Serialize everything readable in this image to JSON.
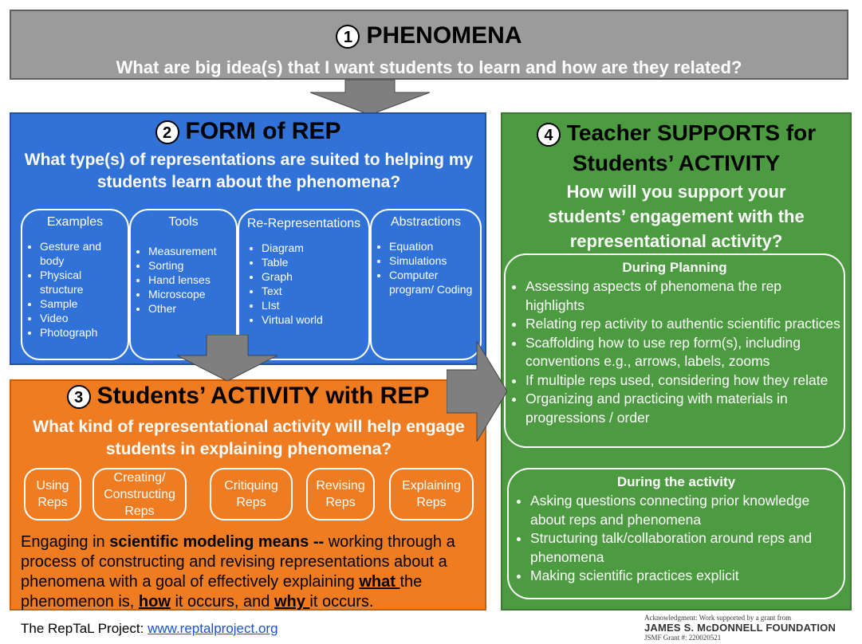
{
  "section1": {
    "number": "1",
    "title": "PHENOMENA",
    "question": "What are big idea(s) that I want students to learn and how are they related?"
  },
  "section2": {
    "number": "2",
    "title": "FORM of REP",
    "question": "What type(s) of representations are suited to helping my students learn about the phenomena?",
    "columns": [
      {
        "header": "Examples",
        "items": [
          "Gesture and body",
          "Physical structure",
          "Sample",
          "Video",
          "Photograph"
        ]
      },
      {
        "header": "Tools",
        "items": [
          "Measurement",
          "Sorting",
          "Hand lenses",
          "Microscope",
          "Other"
        ]
      },
      {
        "header": "Re-Representations",
        "items": [
          "Diagram",
          "Table",
          "Graph",
          "Text",
          "LIst",
          "Virtual world"
        ]
      },
      {
        "header": "Abstractions",
        "items": [
          "Equation",
          "Simulations",
          "Computer program/ Coding"
        ]
      }
    ]
  },
  "section3": {
    "number": "3",
    "title": "Students’ ACTIVITY with REP",
    "question": "What kind of representational activity will help engage students in explaining phenomena?",
    "activities": [
      "Using Reps",
      "Creating/ Constructing Reps",
      "Critiquing Reps",
      "Revising Reps",
      "Explaining Reps"
    ],
    "definition": {
      "p1": "Engaging in ",
      "b1": "scientific modeling means --",
      "p2": " working through a process of constructing and revising representations about a phenomena with a goal of effectively explaining ",
      "u1": "what ",
      "p3": "the phenomenon is, ",
      "u2": "how",
      "p4": " it occurs, and ",
      "u3": "why ",
      "p5": "it occurs."
    }
  },
  "section4": {
    "number": "4",
    "title_line1": "Teacher SUPPORTS  for",
    "title_line2": "Students’ ACTIVITY",
    "question": "How will you support your students’ engagement with the representational activity?",
    "planning": {
      "header": "During Planning",
      "items": [
        "Assessing aspects of phenomena the rep highlights",
        "Relating rep activity to authentic scientific practices",
        "Scaffolding how to use rep form(s), including conventions e.g., arrows, labels, zooms",
        "If multiple reps used, considering how they relate",
        "Organizing and practicing with materials in progressions / order"
      ]
    },
    "activity": {
      "header": "During the activity",
      "items": [
        "Asking questions connecting prior knowledge about reps and phenomena",
        "Structuring talk/collaboration around reps and phenomena",
        "Making scientific practices explicit"
      ]
    }
  },
  "footer": {
    "project": "The RepTaL Project: ",
    "link": "www.reptalproject.org"
  },
  "acknowledgment": {
    "line1": "Acknowledgment: Work supported by a grant from",
    "line2": "JAMES S. McDONNELL FOUNDATION",
    "line3": "JSMF Grant #: 220020521"
  },
  "colors": {
    "section1_bg": "#9b9b9b",
    "section2_bg": "#3072d7",
    "section3_bg": "#f07c22",
    "section4_bg": "#4c9b40",
    "arrow": "#7f7f7f"
  }
}
